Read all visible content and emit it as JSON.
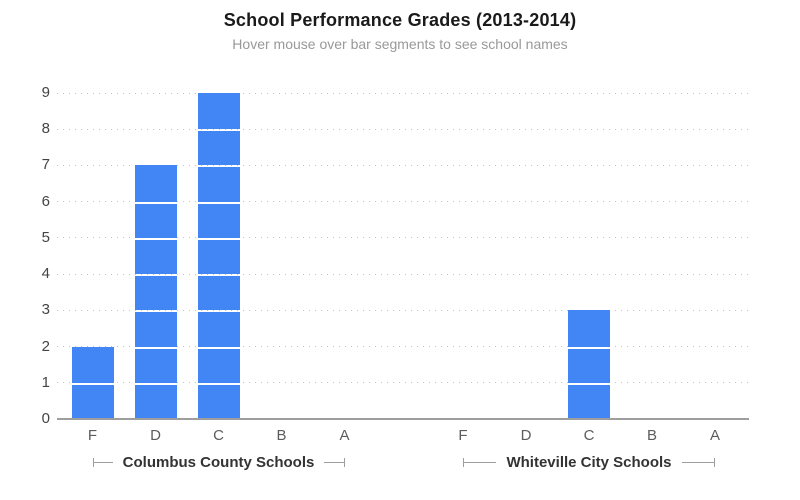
{
  "chart_data": {
    "type": "bar",
    "title": "School Performance Grades (2013-2014)",
    "subtitle": "Hover mouse over bar segments to see school names",
    "ylabel": "",
    "xlabel": "",
    "ylim": [
      0,
      9
    ],
    "yticks": [
      0,
      1,
      2,
      3,
      4,
      5,
      6,
      7,
      8,
      9
    ],
    "grid": "dotted-horizontal",
    "legend": "none",
    "stacked_unit_segments": true,
    "bar_color": "#4285f4",
    "segment_divider_color": "#ffffff",
    "groups": [
      {
        "label": "Columbus County Schools",
        "categories": [
          "F",
          "D",
          "C",
          "B",
          "A"
        ],
        "values": [
          2,
          7,
          9,
          0,
          0
        ]
      },
      {
        "label": "Whiteville City Schools",
        "categories": [
          "F",
          "D",
          "C",
          "B",
          "A"
        ],
        "values": [
          0,
          0,
          3,
          0,
          0
        ]
      }
    ]
  }
}
